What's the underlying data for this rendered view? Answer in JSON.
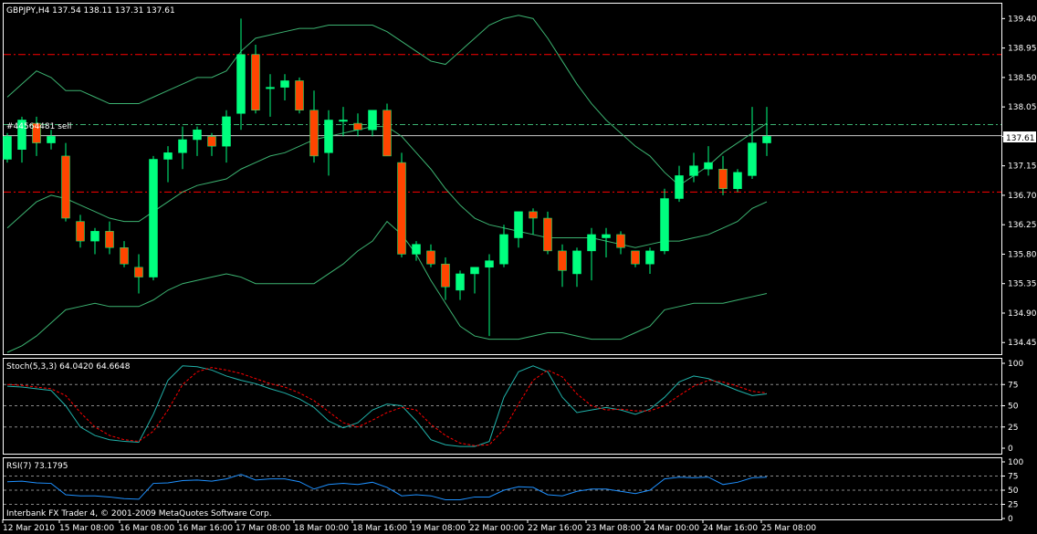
{
  "main_pane": {
    "title": "GBPJPY,H4  137.54 138.11 137.31 137.61",
    "order_label": "#44564481 sell",
    "current_price": "137.61",
    "price_axis": [
      "139.40",
      "138.95",
      "138.50",
      "138.05",
      "137.60",
      "137.15",
      "136.70",
      "136.25",
      "135.80",
      "135.35",
      "134.90",
      "134.45"
    ]
  },
  "stoch_pane": {
    "title": "Stoch(5,3,3) 64.0420 64.6648",
    "axis": [
      "100",
      "75",
      "50",
      "25",
      "0"
    ]
  },
  "rsi_pane": {
    "title": "RSI(7) 73.1795",
    "axis": [
      "100",
      "75",
      "50",
      "25",
      "0"
    ]
  },
  "copyright": "Interbank FX Trader 4, © 2001-2009 MetaQuotes Software Corp.",
  "time_axis": [
    "12 Mar 2010",
    "15 Mar 08:00",
    "16 Mar 08:00",
    "16 Mar 16:00",
    "17 Mar 08:00",
    "18 Mar 00:00",
    "18 Mar 16:00",
    "19 Mar 08:00",
    "22 Mar 00:00",
    "22 Mar 16:00",
    "23 Mar 08:00",
    "24 Mar 00:00",
    "24 Mar 16:00",
    "25 Mar 08:00"
  ],
  "colors": {
    "background": "#000000",
    "bull": "#00ff7f",
    "bear": "#ff4500",
    "bands": "#3cb371",
    "stoch_main": "#20b2aa",
    "stoch_signal": "#ff0000",
    "rsi": "#1e90ff",
    "level_line": "#ff0000",
    "grid": "#ffffff"
  },
  "chart_data": {
    "type": "candlestick",
    "symbol": "GBPJPY",
    "timeframe": "H4",
    "ylim": [
      134.3,
      139.6
    ],
    "candles": [
      [
        137.25,
        137.65,
        137.2,
        137.6
      ],
      [
        137.4,
        137.9,
        137.2,
        137.85
      ],
      [
        137.8,
        137.9,
        137.3,
        137.5
      ],
      [
        137.5,
        137.7,
        137.4,
        137.6
      ],
      [
        137.3,
        137.5,
        136.3,
        136.35
      ],
      [
        136.3,
        136.4,
        135.9,
        136.0
      ],
      [
        136.0,
        136.2,
        135.8,
        136.15
      ],
      [
        136.15,
        136.3,
        135.8,
        135.9
      ],
      [
        135.9,
        136.0,
        135.6,
        135.65
      ],
      [
        135.6,
        135.8,
        135.2,
        135.45
      ],
      [
        135.45,
        137.3,
        135.4,
        137.25
      ],
      [
        137.25,
        137.45,
        136.9,
        137.35
      ],
      [
        137.35,
        137.75,
        137.1,
        137.55
      ],
      [
        137.55,
        137.75,
        137.3,
        137.7
      ],
      [
        137.6,
        137.65,
        137.3,
        137.45
      ],
      [
        137.45,
        138.0,
        137.2,
        137.9
      ],
      [
        137.95,
        139.4,
        137.7,
        138.85
      ],
      [
        138.85,
        139.0,
        137.95,
        138.0
      ],
      [
        138.35,
        138.55,
        137.9,
        138.35
      ],
      [
        138.35,
        138.55,
        138.15,
        138.45
      ],
      [
        138.45,
        138.5,
        137.95,
        138.0
      ],
      [
        138.0,
        138.3,
        137.2,
        137.3
      ],
      [
        137.35,
        138.0,
        137.0,
        137.85
      ],
      [
        137.85,
        138.05,
        137.6,
        137.85
      ],
      [
        137.8,
        137.95,
        137.6,
        137.7
      ],
      [
        137.7,
        138.0,
        137.6,
        138.0
      ],
      [
        138.0,
        138.1,
        137.3,
        137.3
      ],
      [
        137.2,
        137.35,
        135.75,
        135.8
      ],
      [
        135.8,
        136.0,
        135.7,
        135.95
      ],
      [
        135.85,
        135.95,
        135.6,
        135.65
      ],
      [
        135.65,
        135.75,
        135.1,
        135.3
      ],
      [
        135.25,
        135.55,
        135.1,
        135.5
      ],
      [
        135.5,
        135.6,
        135.2,
        135.6
      ],
      [
        135.6,
        135.8,
        134.55,
        135.7
      ],
      [
        135.65,
        136.25,
        135.6,
        136.1
      ],
      [
        136.05,
        136.45,
        135.9,
        136.45
      ],
      [
        136.45,
        136.5,
        136.1,
        136.35
      ],
      [
        136.35,
        136.45,
        135.8,
        135.85
      ],
      [
        135.85,
        135.95,
        135.3,
        135.55
      ],
      [
        135.5,
        135.9,
        135.3,
        135.85
      ],
      [
        135.85,
        136.2,
        135.4,
        136.1
      ],
      [
        136.05,
        136.2,
        135.75,
        136.1
      ],
      [
        136.1,
        136.15,
        135.8,
        135.9
      ],
      [
        135.85,
        135.85,
        135.6,
        135.65
      ],
      [
        135.65,
        135.9,
        135.5,
        135.85
      ],
      [
        135.85,
        136.8,
        135.8,
        136.65
      ],
      [
        136.65,
        137.15,
        136.6,
        137.0
      ],
      [
        137.0,
        137.35,
        136.9,
        137.15
      ],
      [
        137.1,
        137.45,
        137.0,
        137.2
      ],
      [
        137.1,
        137.3,
        136.7,
        136.8
      ],
      [
        136.8,
        137.1,
        136.75,
        137.05
      ],
      [
        137.0,
        138.05,
        136.95,
        137.5
      ],
      [
        137.5,
        138.05,
        137.3,
        137.6
      ]
    ],
    "bollinger_upper": [
      138.2,
      138.4,
      138.6,
      138.5,
      138.3,
      138.3,
      138.2,
      138.1,
      138.1,
      138.1,
      138.2,
      138.3,
      138.4,
      138.5,
      138.5,
      138.6,
      138.9,
      139.1,
      139.15,
      139.2,
      139.25,
      139.25,
      139.3,
      139.3,
      139.3,
      139.3,
      139.2,
      139.05,
      138.9,
      138.75,
      138.7,
      138.9,
      139.1,
      139.3,
      139.4,
      139.45,
      139.4,
      139.1,
      138.75,
      138.4,
      138.1,
      137.85,
      137.65,
      137.45,
      137.3,
      137.05,
      136.85,
      137.0,
      137.15,
      137.35,
      137.5,
      137.65,
      137.8
    ],
    "bollinger_middle": [
      136.2,
      136.4,
      136.6,
      136.7,
      136.65,
      136.55,
      136.45,
      136.35,
      136.3,
      136.3,
      136.45,
      136.6,
      136.75,
      136.85,
      136.9,
      136.95,
      137.1,
      137.2,
      137.3,
      137.35,
      137.45,
      137.55,
      137.6,
      137.65,
      137.7,
      137.75,
      137.75,
      137.6,
      137.35,
      137.1,
      136.8,
      136.55,
      136.35,
      136.25,
      136.2,
      136.15,
      136.1,
      136.05,
      136.05,
      136.05,
      136.05,
      136.0,
      135.95,
      135.9,
      135.95,
      136.0,
      136.0,
      136.05,
      136.1,
      136.2,
      136.3,
      136.5,
      136.6
    ],
    "bollinger_lower": [
      134.3,
      134.4,
      134.55,
      134.75,
      134.95,
      135.0,
      135.05,
      135.0,
      135.0,
      135.0,
      135.1,
      135.25,
      135.35,
      135.4,
      135.45,
      135.5,
      135.45,
      135.35,
      135.35,
      135.35,
      135.35,
      135.35,
      135.5,
      135.65,
      135.85,
      136.0,
      136.3,
      136.1,
      135.8,
      135.4,
      135.05,
      134.7,
      134.55,
      134.5,
      134.5,
      134.5,
      134.55,
      134.6,
      134.6,
      134.55,
      134.5,
      134.5,
      134.5,
      134.6,
      134.7,
      134.95,
      135.0,
      135.05,
      135.05,
      135.05,
      135.1,
      135.15,
      135.2
    ],
    "stoch_main": [
      73,
      72,
      70,
      68,
      50,
      25,
      15,
      10,
      8,
      7,
      40,
      80,
      97,
      96,
      92,
      85,
      80,
      76,
      70,
      65,
      58,
      48,
      32,
      24,
      30,
      45,
      52,
      50,
      32,
      10,
      4,
      2,
      2,
      8,
      60,
      90,
      97,
      90,
      60,
      42,
      45,
      48,
      45,
      40,
      46,
      60,
      78,
      85,
      82,
      75,
      68,
      62,
      64
    ],
    "stoch_signal": [
      75,
      74,
      72,
      70,
      62,
      42,
      25,
      15,
      10,
      8,
      20,
      45,
      75,
      90,
      95,
      92,
      88,
      82,
      76,
      72,
      65,
      56,
      43,
      30,
      25,
      33,
      42,
      48,
      45,
      28,
      15,
      6,
      3,
      4,
      22,
      52,
      80,
      92,
      84,
      64,
      50,
      45,
      46,
      44,
      44,
      50,
      62,
      73,
      80,
      78,
      73,
      67,
      65
    ],
    "rsi": [
      65,
      66,
      63,
      62,
      42,
      40,
      40,
      38,
      35,
      34,
      62,
      63,
      67,
      68,
      66,
      70,
      78,
      68,
      70,
      70,
      65,
      52,
      60,
      62,
      60,
      64,
      55,
      40,
      42,
      40,
      33,
      33,
      38,
      38,
      50,
      56,
      55,
      42,
      40,
      48,
      52,
      52,
      48,
      44,
      50,
      70,
      73,
      72,
      73,
      60,
      64,
      72,
      73
    ],
    "levels": [
      138.85,
      136.75
    ],
    "current": 137.61
  }
}
